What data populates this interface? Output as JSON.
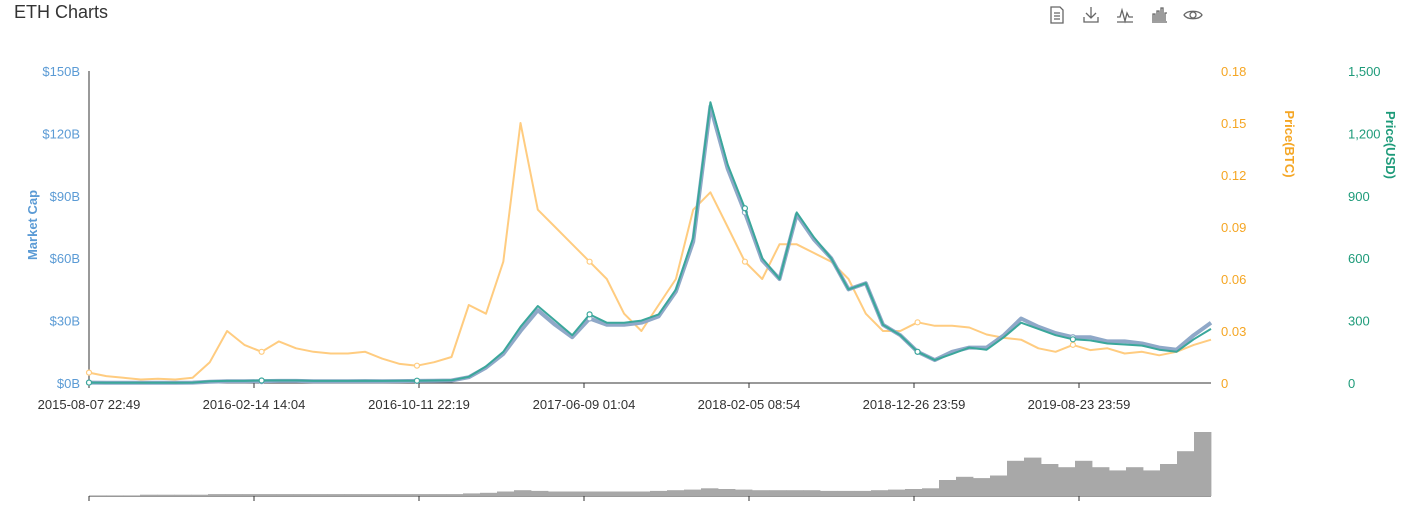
{
  "header": {
    "title": "ETH Charts"
  },
  "toolbar": {
    "icons": [
      "data-view-icon",
      "download-icon",
      "line-switch-icon",
      "bar-switch-icon",
      "eye-icon"
    ]
  },
  "colors": {
    "market_cap_axis": "#5b9bd5",
    "price_btc": "#ffcc80",
    "price_btc_axis": "#f5a623",
    "price_usd": "#3aa79b",
    "price_usd_axis": "#1e9b7a",
    "volume": "#a8a8a8",
    "axis": "#333333"
  },
  "chart_data": {
    "type": "line",
    "x_labels": [
      "2015-08-07 22:49",
      "2016-02-14 14:04",
      "2016-10-11 22:19",
      "2017-06-09 01:04",
      "2018-02-05 08:54",
      "2018-12-26 23:59",
      "2019-08-23 23:59"
    ],
    "y_axes": {
      "market_cap": {
        "label": "Market Cap",
        "ticks": [
          "$0B",
          "$30B",
          "$60B",
          "$90B",
          "$120B",
          "$150B"
        ],
        "range": [
          0,
          150
        ]
      },
      "price_btc": {
        "label": "Price(BTC)",
        "ticks": [
          "0",
          "0.03",
          "0.06",
          "0.09",
          "0.12",
          "0.15",
          "0.18"
        ],
        "range": [
          0,
          0.18
        ]
      },
      "price_usd": {
        "label": "Price(USD)",
        "ticks": [
          "0",
          "300",
          "600",
          "900",
          "1,200",
          "1,500"
        ],
        "range": [
          0,
          1500
        ]
      }
    },
    "series": [
      {
        "name": "Price(BTC)",
        "axis": "price_btc",
        "values": [
          0.006,
          0.004,
          0.003,
          0.002,
          0.0025,
          0.002,
          0.003,
          0.012,
          0.03,
          0.022,
          0.018,
          0.024,
          0.02,
          0.018,
          0.017,
          0.017,
          0.018,
          0.014,
          0.011,
          0.01,
          0.012,
          0.015,
          0.045,
          0.04,
          0.07,
          0.15,
          0.1,
          0.09,
          0.08,
          0.07,
          0.06,
          0.04,
          0.03,
          0.045,
          0.06,
          0.1,
          0.11,
          0.09,
          0.07,
          0.06,
          0.08,
          0.08,
          0.075,
          0.07,
          0.06,
          0.04,
          0.03,
          0.03,
          0.035,
          0.033,
          0.033,
          0.032,
          0.028,
          0.026,
          0.025,
          0.02,
          0.018,
          0.022,
          0.019,
          0.02,
          0.017,
          0.018,
          0.016,
          0.018,
          0.022,
          0.025
        ]
      },
      {
        "name": "Price(USD)",
        "axis": "price_usd",
        "values": [
          2,
          1,
          1,
          1,
          1,
          1,
          2,
          8,
          10,
          10,
          12,
          12,
          12,
          10,
          10,
          10,
          11,
          10,
          11,
          11,
          12,
          13,
          30,
          80,
          150,
          270,
          370,
          300,
          230,
          330,
          290,
          290,
          300,
          330,
          450,
          700,
          1350,
          1050,
          840,
          600,
          500,
          820,
          700,
          600,
          450,
          480,
          280,
          230,
          150,
          110,
          140,
          170,
          160,
          220,
          290,
          260,
          230,
          210,
          205,
          190,
          185,
          180,
          160,
          150,
          210,
          260
        ]
      },
      {
        "name": "Market Cap",
        "axis": "market_cap",
        "values": [
          0.2,
          0.1,
          0.1,
          0.1,
          0.1,
          0.1,
          0.2,
          0.6,
          0.8,
          0.8,
          0.9,
          1.0,
          1.0,
          0.8,
          0.8,
          0.8,
          0.9,
          0.8,
          0.9,
          1.0,
          1.1,
          1.2,
          2.8,
          7.4,
          14,
          25,
          35,
          28,
          22,
          31,
          28,
          28,
          29,
          32,
          44,
          68,
          133,
          103,
          82,
          59,
          50,
          81,
          69,
          60,
          45,
          48,
          28,
          23,
          15,
          11,
          15,
          17,
          17,
          23,
          31,
          27,
          24,
          22,
          22,
          20,
          20,
          19,
          17,
          16,
          23,
          29
        ]
      },
      {
        "name": "Volume",
        "axis": "volume",
        "values": [
          0.01,
          0.01,
          0.01,
          0.02,
          0.02,
          0.02,
          0.02,
          0.03,
          0.03,
          0.03,
          0.03,
          0.03,
          0.03,
          0.03,
          0.03,
          0.03,
          0.03,
          0.03,
          0.03,
          0.03,
          0.03,
          0.03,
          0.04,
          0.05,
          0.07,
          0.09,
          0.08,
          0.07,
          0.07,
          0.07,
          0.07,
          0.07,
          0.07,
          0.08,
          0.09,
          0.1,
          0.12,
          0.11,
          0.1,
          0.09,
          0.09,
          0.09,
          0.09,
          0.08,
          0.08,
          0.08,
          0.09,
          0.1,
          0.11,
          0.12,
          0.25,
          0.3,
          0.28,
          0.32,
          0.55,
          0.6,
          0.5,
          0.45,
          0.55,
          0.45,
          0.4,
          0.45,
          0.4,
          0.5,
          0.7,
          1.0
        ]
      }
    ],
    "grid": false,
    "legend": "none"
  }
}
